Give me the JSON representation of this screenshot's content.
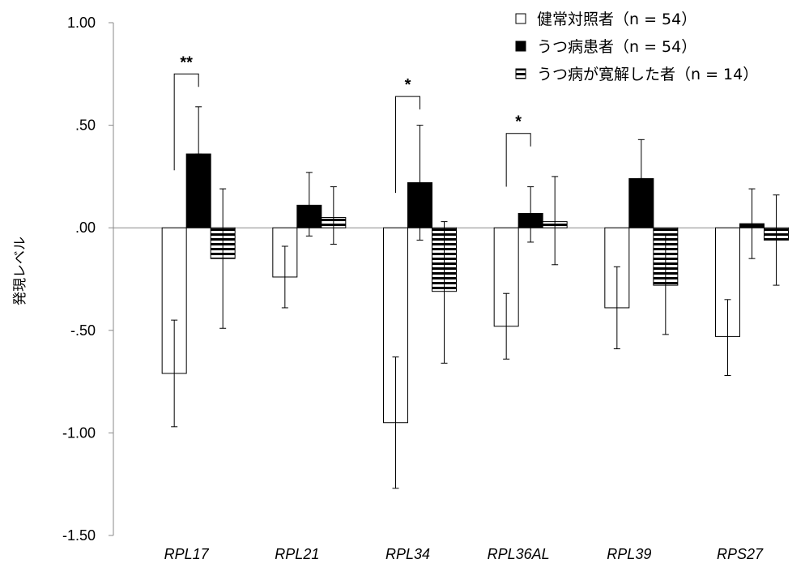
{
  "chart_data": {
    "type": "bar",
    "categories": [
      "RPL17",
      "RPL21",
      "RPL34",
      "RPL36AL",
      "RPL39",
      "RPS27"
    ],
    "series": [
      {
        "name": "健常対照者（n = 54）",
        "fill": "#ffffff",
        "values": [
          -0.71,
          -0.24,
          -0.95,
          -0.48,
          -0.39,
          -0.53
        ],
        "err_low": [
          -0.97,
          -0.39,
          -1.27,
          -0.64,
          -0.59,
          -0.72
        ],
        "err_high": [
          -0.45,
          -0.09,
          -0.63,
          -0.32,
          -0.19,
          -0.35
        ]
      },
      {
        "name": "うつ病患者（n = 54）",
        "fill": "#000000",
        "values": [
          0.36,
          0.11,
          0.22,
          0.07,
          0.24,
          0.02
        ],
        "err_low": [
          0.36,
          -0.04,
          -0.06,
          -0.07,
          0.24,
          -0.15
        ],
        "err_high": [
          0.59,
          0.27,
          0.5,
          0.2,
          0.43,
          0.19
        ]
      },
      {
        "name": "うつ病が寛解した者（n = 14）",
        "fill": "striped",
        "values": [
          -0.15,
          0.05,
          -0.31,
          0.03,
          -0.28,
          -0.06
        ],
        "err_low": [
          -0.49,
          -0.08,
          -0.66,
          -0.18,
          -0.52,
          -0.28
        ],
        "err_high": [
          0.19,
          0.2,
          0.03,
          0.25,
          -0.03,
          0.16
        ]
      }
    ],
    "ylabel": "発現レベル",
    "xlabel": "",
    "ylim": [
      -1.5,
      1.0
    ],
    "yticks": [
      1.0,
      0.5,
      0.0,
      -0.5,
      -1.0,
      -1.5
    ],
    "ytick_labels": [
      "1.00",
      ".50",
      ".00",
      "-.50",
      "-1.00",
      "-1.50"
    ],
    "grid": false,
    "legend_position": "top-right",
    "significance": [
      {
        "category": "RPL17",
        "label": "**",
        "bracket_top": 0.75
      },
      {
        "category": "RPL34",
        "label": "*",
        "bracket_top": 0.64
      },
      {
        "category": "RPL36AL",
        "label": "*",
        "bracket_top": 0.46
      }
    ]
  }
}
